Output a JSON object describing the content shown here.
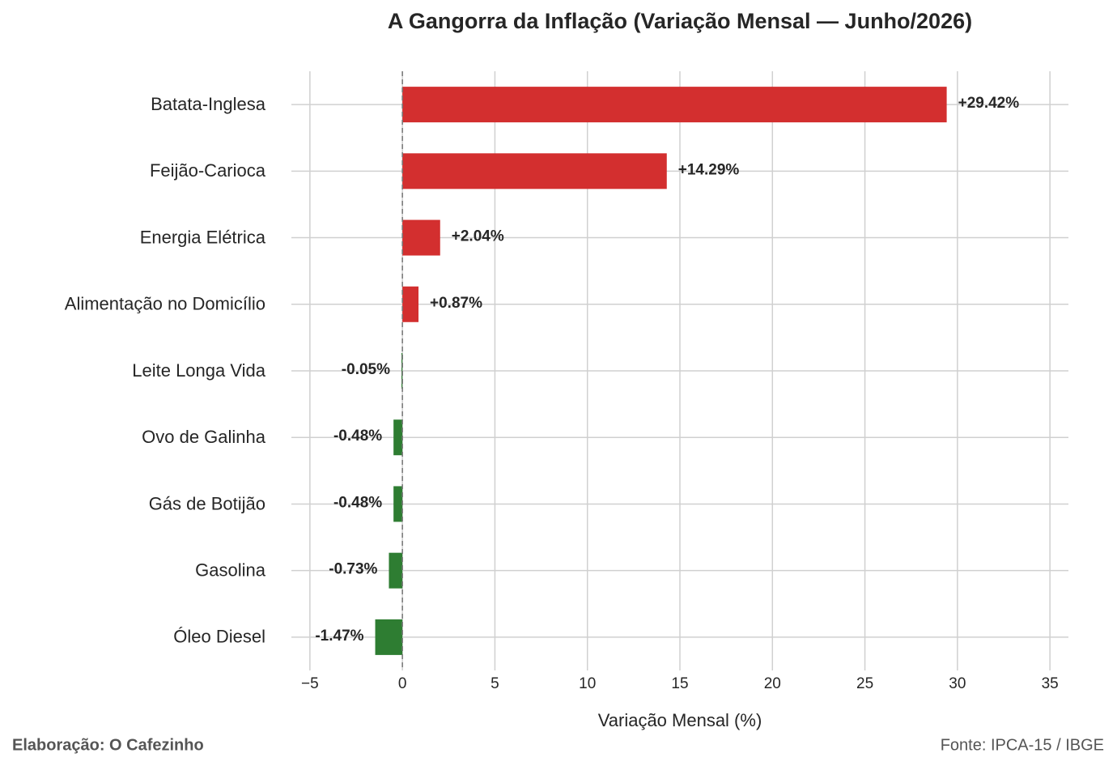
{
  "chart_data": {
    "type": "barh",
    "title": "A Gangorra da Inflação (Variação Mensal — Junho/2026)",
    "x_label": "Variação Mensal (%)",
    "footer_left": "Elaboração: O Cafezinho",
    "footer_right": "Fonte: IPCA-15 / IBGE",
    "categories": [
      "Batata-Inglesa",
      "Feijão-Carioca",
      "Energia Elétrica",
      "Alimentação no Domicílio",
      "Leite Longa Vida",
      "Ovo de Galinha",
      "Gás de Botijão",
      "Gasolina",
      "Óleo Diesel"
    ],
    "values": [
      29.42,
      14.29,
      2.04,
      0.87,
      -0.05,
      -0.48,
      -0.48,
      -0.73,
      -1.47
    ],
    "value_labels": [
      "+29.42%",
      "+14.29%",
      "+2.04%",
      "+0.87%",
      "-0.05%",
      "-0.48%",
      "-0.48%",
      "-0.73%",
      "-1.47%"
    ],
    "colors": [
      "#d32f2f",
      "#d32f2f",
      "#d32f2f",
      "#d32f2f",
      "#2e7d32",
      "#2e7d32",
      "#2e7d32",
      "#2e7d32",
      "#2e7d32"
    ],
    "xlim": [
      -6,
      36
    ],
    "xticks": [
      {
        "value": -5,
        "label": "−5"
      },
      0,
      5,
      10,
      15,
      20,
      25,
      30,
      35
    ],
    "grid": true
  }
}
